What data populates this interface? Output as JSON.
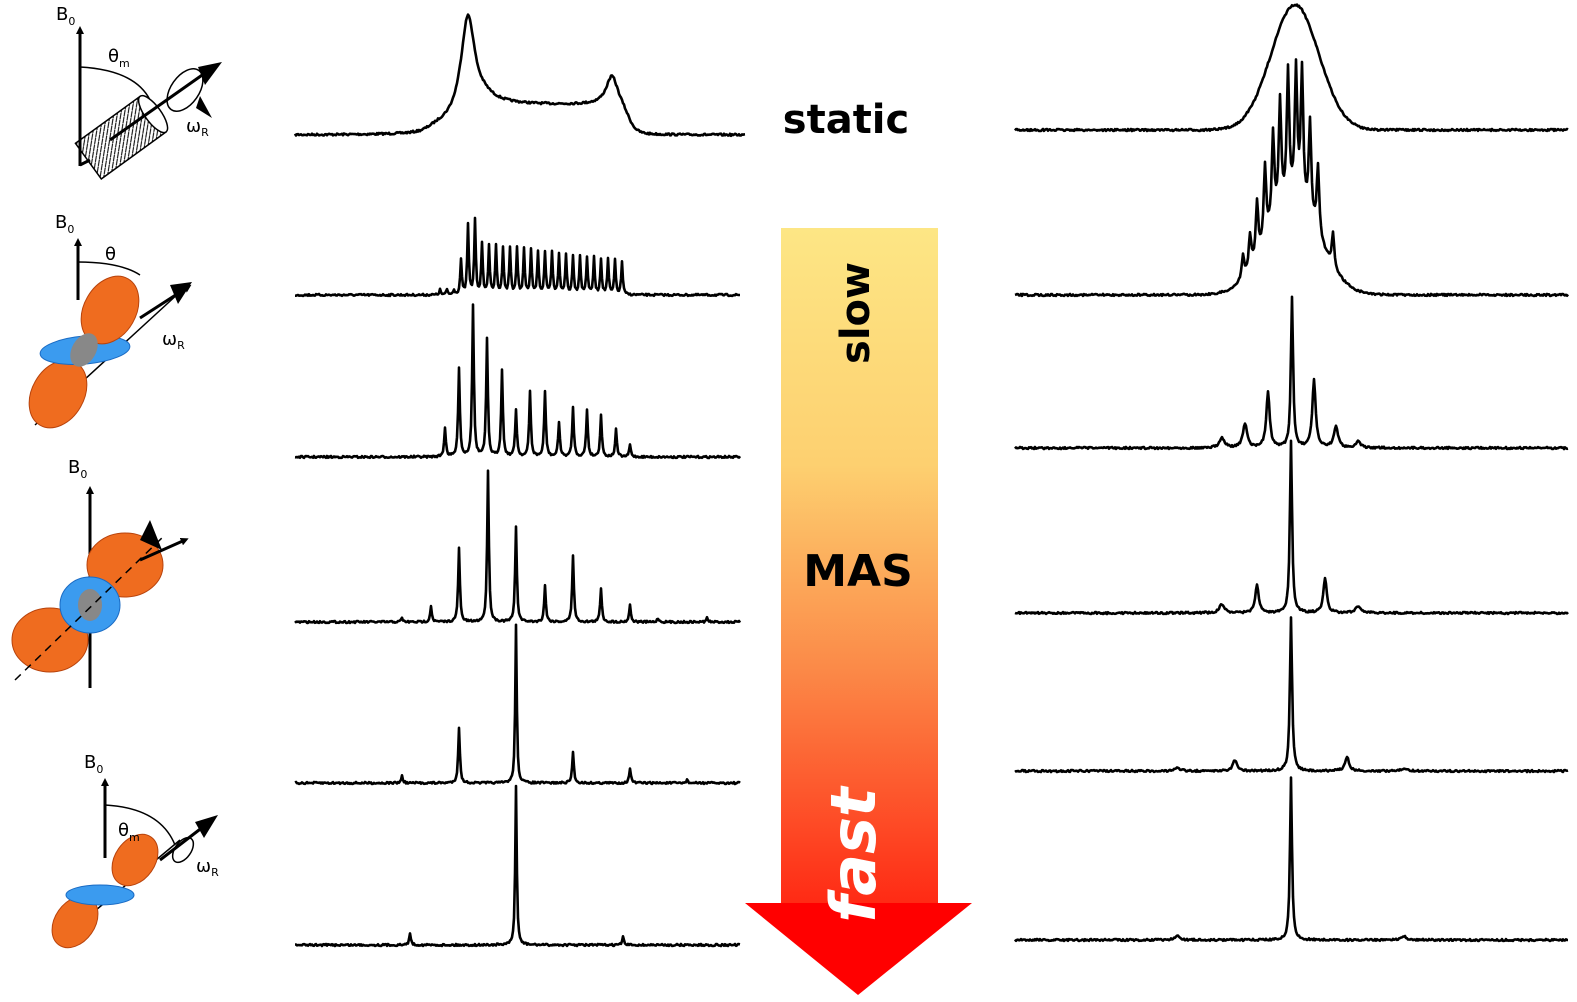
{
  "labels": {
    "static": "static",
    "slow": "slow",
    "mas": "MAS",
    "fast": "fast"
  },
  "rotor_diagrams": [
    {
      "field": "B",
      "field_sub": "0",
      "angle": "θ",
      "angle_sub": "m",
      "spin": "ω",
      "spin_sub": "R"
    },
    {
      "field": "B",
      "field_sub": "0",
      "angle": "θ",
      "spin": "ω",
      "spin_sub": "R"
    },
    {
      "field": "B",
      "field_sub": "0"
    },
    {
      "field": "B",
      "field_sub": "0",
      "angle": "θ",
      "angle_sub": "m",
      "spin": "ω",
      "spin_sub": "R"
    }
  ]
}
